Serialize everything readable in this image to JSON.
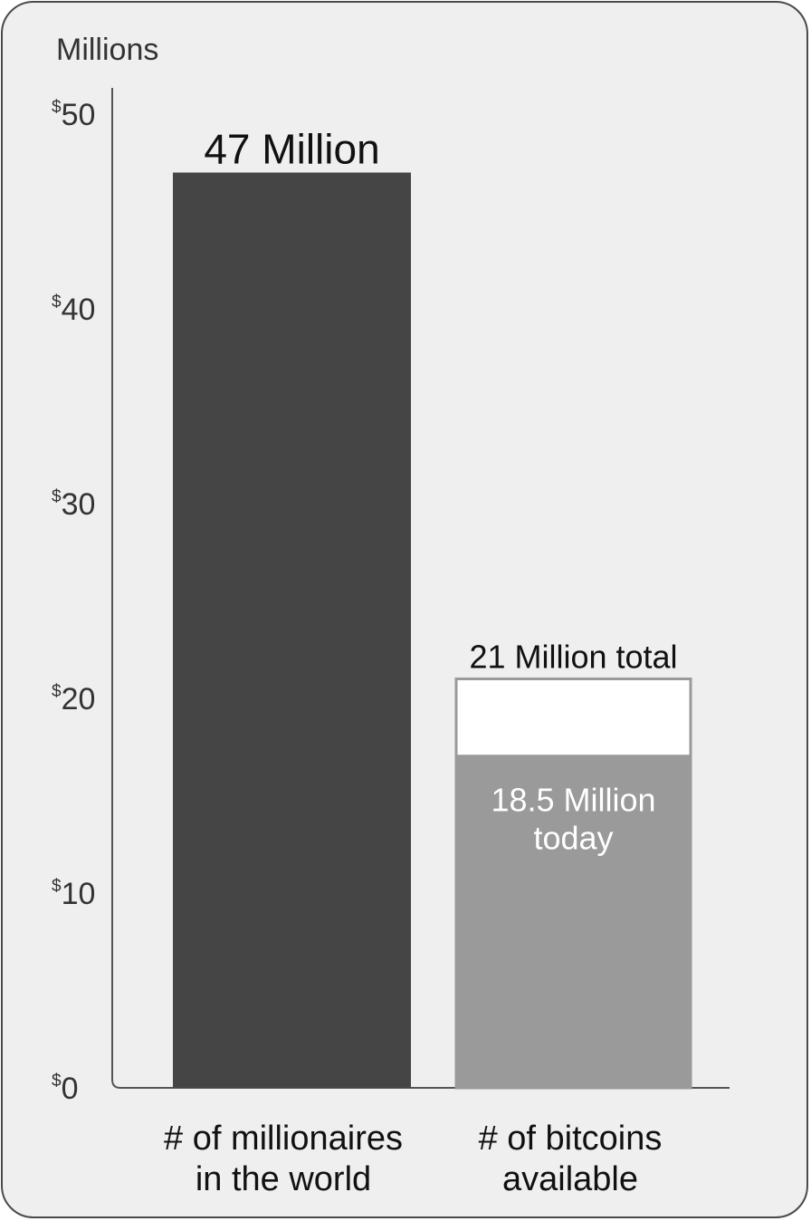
{
  "chart_data": {
    "type": "bar",
    "unit_label": "Millions",
    "ylim": [
      0,
      50
    ],
    "yticks": [
      {
        "value": 50,
        "currency": "$",
        "number": "50"
      },
      {
        "value": 40,
        "currency": "$",
        "number": "40"
      },
      {
        "value": 30,
        "currency": "$",
        "number": "30"
      },
      {
        "value": 20,
        "currency": "$",
        "number": "20"
      },
      {
        "value": 10,
        "currency": "$",
        "number": "10"
      },
      {
        "value": 0,
        "currency": "$",
        "number": "0"
      }
    ],
    "categories": [
      {
        "line1": "# of millionaires",
        "line2": "in the world"
      },
      {
        "line1": "# of bitcoins",
        "line2": "available"
      }
    ],
    "millionaires": {
      "value": 47,
      "label": "47 Million",
      "color": "#454545"
    },
    "bitcoins": {
      "total": 21,
      "total_label": "21 Million total",
      "today": 18.5,
      "today_label_line1": "18.5 Million",
      "today_label_line2": "today",
      "today_color": "#9a9a9a",
      "remaining_color": "#ffffff"
    },
    "grid": false,
    "legend": "none"
  }
}
